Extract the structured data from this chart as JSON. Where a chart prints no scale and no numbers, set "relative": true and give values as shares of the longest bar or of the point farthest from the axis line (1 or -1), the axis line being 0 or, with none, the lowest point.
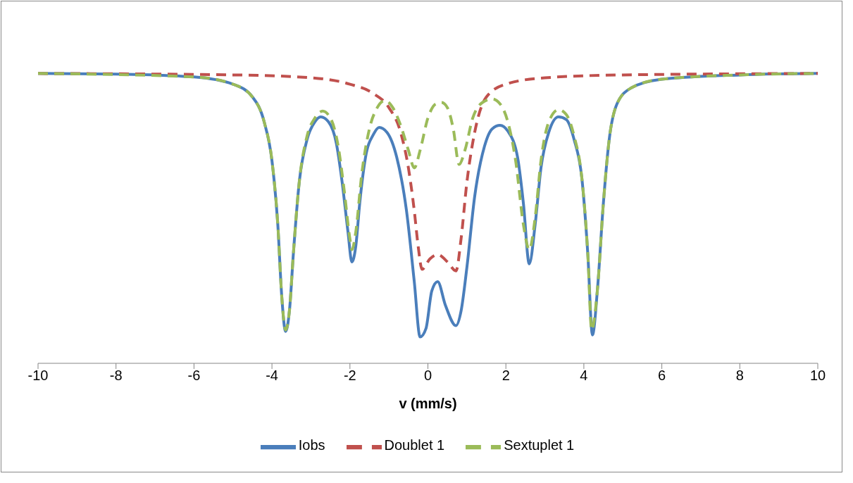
{
  "chart_data": {
    "type": "line",
    "relative": true,
    "xlabel": "v (mm/s)",
    "xlim": [
      -10,
      10
    ],
    "xticks": [
      -10,
      -8,
      -6,
      -4,
      -2,
      0,
      2,
      4,
      6,
      8,
      10
    ],
    "legend": "bottom",
    "marker": "none",
    "series": [
      {
        "name": "Iobs",
        "color": "#4a7ebb",
        "line_style": "solid",
        "x": [
          -10,
          -8,
          -6,
          -5,
          -4.5,
          -4.2,
          -4,
          -3.85,
          -3.75,
          -3.65,
          -3.55,
          -3.45,
          -3.3,
          -3.1,
          -2.9,
          -2.75,
          -2.55,
          -2.35,
          -2.2,
          -2.05,
          -1.95,
          -1.85,
          -1.75,
          -1.6,
          -1.4,
          -1.25,
          -1.05,
          -0.8,
          -0.55,
          -0.35,
          -0.2,
          -0.05,
          0.1,
          0.25,
          0.45,
          0.72,
          0.85,
          1.0,
          1.2,
          1.45,
          1.65,
          1.85,
          2.05,
          2.3,
          2.45,
          2.6,
          2.75,
          2.9,
          3.1,
          3.35,
          3.55,
          3.75,
          3.95,
          4.1,
          4.22,
          4.35,
          4.5,
          4.65,
          4.85,
          5.2,
          6,
          8,
          10
        ],
        "values": [
          1.0,
          0.998,
          0.988,
          0.963,
          0.919,
          0.833,
          0.699,
          0.478,
          0.233,
          0.11,
          0.184,
          0.38,
          0.625,
          0.772,
          0.833,
          0.85,
          0.833,
          0.76,
          0.625,
          0.453,
          0.35,
          0.404,
          0.551,
          0.711,
          0.789,
          0.814,
          0.797,
          0.711,
          0.527,
          0.282,
          0.091,
          0.12,
          0.25,
          0.282,
          0.2,
          0.13,
          0.18,
          0.331,
          0.576,
          0.748,
          0.809,
          0.821,
          0.801,
          0.711,
          0.551,
          0.343,
          0.478,
          0.674,
          0.797,
          0.85,
          0.841,
          0.772,
          0.637,
          0.38,
          0.098,
          0.257,
          0.551,
          0.772,
          0.895,
          0.949,
          0.98,
          0.995,
          1.0
        ]
      },
      {
        "name": "Doublet 1",
        "color": "#c0504d",
        "line_style": "dashed",
        "x": [
          -10,
          -5,
          -3,
          -2,
          -1.4,
          -1.0,
          -0.7,
          -0.5,
          -0.35,
          -0.25,
          -0.15,
          0.05,
          0.25,
          0.5,
          0.72,
          0.85,
          1.0,
          1.2,
          1.5,
          2,
          3,
          5,
          10
        ],
        "values": [
          1.0,
          0.995,
          0.985,
          0.963,
          0.931,
          0.882,
          0.797,
          0.674,
          0.527,
          0.404,
          0.324,
          0.36,
          0.375,
          0.35,
          0.319,
          0.429,
          0.625,
          0.797,
          0.919,
          0.963,
          0.985,
          0.995,
          1.0
        ]
      },
      {
        "name": "Sextuplet 1",
        "color": "#9bbb59",
        "line_style": "dashed",
        "x": [
          -10,
          -6,
          -5,
          -4.5,
          -4.2,
          -4,
          -3.85,
          -3.75,
          -3.65,
          -3.55,
          -3.45,
          -3.3,
          -3.1,
          -2.9,
          -2.7,
          -2.5,
          -2.3,
          -2.15,
          -2.0,
          -1.95,
          -1.85,
          -1.7,
          -1.5,
          -1.3,
          -1.1,
          -0.9,
          -0.7,
          -0.5,
          -0.35,
          -0.2,
          0,
          0.2,
          0.35,
          0.5,
          0.65,
          0.8,
          0.95,
          1.15,
          1.4,
          1.65,
          1.85,
          2.05,
          2.25,
          2.45,
          2.6,
          2.75,
          2.9,
          3.1,
          3.35,
          3.55,
          3.75,
          3.95,
          4.1,
          4.2,
          4.35,
          4.5,
          4.65,
          4.85,
          5.2,
          6,
          8,
          10
        ],
        "values": [
          1.0,
          0.988,
          0.963,
          0.919,
          0.833,
          0.699,
          0.478,
          0.233,
          0.115,
          0.184,
          0.38,
          0.625,
          0.784,
          0.846,
          0.87,
          0.846,
          0.748,
          0.6,
          0.429,
          0.392,
          0.453,
          0.65,
          0.809,
          0.882,
          0.907,
          0.882,
          0.821,
          0.735,
          0.674,
          0.735,
          0.846,
          0.895,
          0.9,
          0.882,
          0.809,
          0.686,
          0.735,
          0.846,
          0.9,
          0.912,
          0.895,
          0.833,
          0.699,
          0.478,
          0.392,
          0.502,
          0.699,
          0.833,
          0.875,
          0.858,
          0.784,
          0.637,
          0.38,
          0.115,
          0.257,
          0.551,
          0.772,
          0.895,
          0.949,
          0.98,
          0.995,
          1.0
        ]
      }
    ]
  }
}
